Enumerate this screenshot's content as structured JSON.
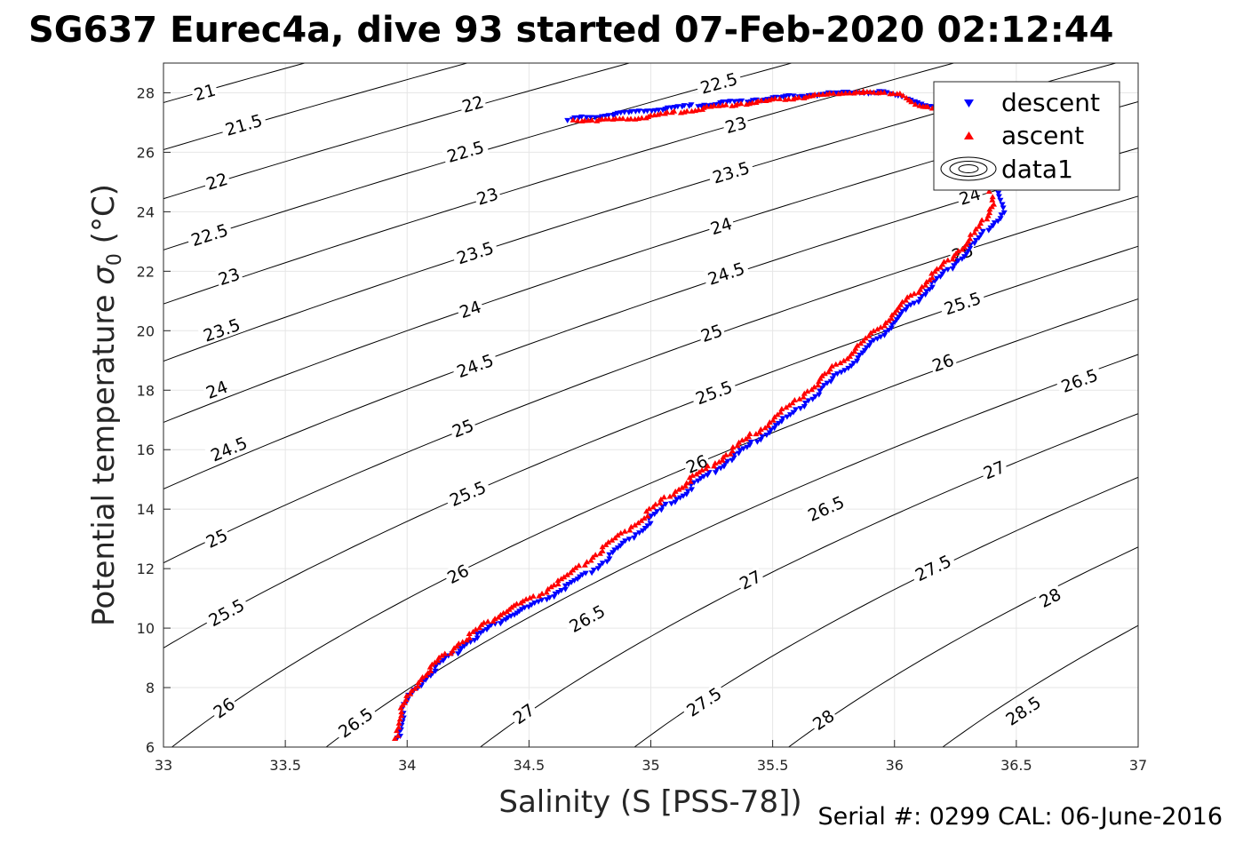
{
  "chart_data": {
    "type": "scatter",
    "title": "SG637 Eurec4a, dive 93 started 07-Feb-2020 02:12:44",
    "xlabel": "Salinity (S [PSS-78])",
    "ylabel_main": "Potential temperature ",
    "ylabel_symbol": "σ",
    "ylabel_sub": "0",
    "ylabel_unit": " (°C)",
    "footer": "Serial #: 0299 CAL: 06-June-2016",
    "xlim": [
      33,
      37
    ],
    "ylim": [
      6,
      29
    ],
    "xticks": [
      33,
      33.5,
      34,
      34.5,
      35,
      35.5,
      36,
      36.5,
      37
    ],
    "xtick_labels": [
      "33",
      "33.5",
      "34",
      "34.5",
      "35",
      "35.5",
      "36",
      "36.5",
      "37"
    ],
    "yticks": [
      6,
      8,
      10,
      12,
      14,
      16,
      18,
      20,
      22,
      24,
      26,
      28
    ],
    "ytick_labels": [
      "6",
      "8",
      "10",
      "12",
      "14",
      "16",
      "18",
      "20",
      "22",
      "24",
      "26",
      "28"
    ],
    "grid": true,
    "legend_position": "top-right",
    "legend": [
      "descent",
      "ascent",
      "data1"
    ],
    "colors": {
      "descent": "#0000ff",
      "ascent": "#ff0000",
      "contour": "#000000",
      "grid": "#e6e6e6"
    },
    "density_contours": {
      "levels": [
        21,
        21.5,
        22,
        22.5,
        23,
        23.5,
        24,
        24.5,
        25,
        25.5,
        26,
        26.5,
        27,
        27.5,
        28,
        28.5
      ],
      "labels": [
        {
          "text": "21",
          "s": 33.17,
          "t": 28.0
        },
        {
          "text": "21.5",
          "s": 33.33,
          "t": 26.9
        },
        {
          "text": "22",
          "s": 33.22,
          "t": 25.0
        },
        {
          "text": "22.5",
          "s": 33.19,
          "t": 23.2
        },
        {
          "text": "23",
          "s": 33.27,
          "t": 21.8
        },
        {
          "text": "23.5",
          "s": 33.24,
          "t": 20.0
        },
        {
          "text": "24",
          "s": 33.22,
          "t": 18.0
        },
        {
          "text": "24.5",
          "s": 33.27,
          "t": 16.0
        },
        {
          "text": "25",
          "s": 33.22,
          "t": 13.0
        },
        {
          "text": "25.5",
          "s": 33.26,
          "t": 10.5
        },
        {
          "text": "26",
          "s": 33.25,
          "t": 7.3
        },
        {
          "text": "26.5",
          "s": 33.79,
          "t": 6.8
        },
        {
          "text": "22",
          "s": 34.27,
          "t": 27.6
        },
        {
          "text": "22.5",
          "s": 34.24,
          "t": 26.0
        },
        {
          "text": "23",
          "s": 34.33,
          "t": 24.5
        },
        {
          "text": "23.5",
          "s": 34.28,
          "t": 22.6
        },
        {
          "text": "24",
          "s": 34.26,
          "t": 20.7
        },
        {
          "text": "24.5",
          "s": 34.28,
          "t": 18.8
        },
        {
          "text": "25",
          "s": 34.23,
          "t": 16.7
        },
        {
          "text": "25.5",
          "s": 34.25,
          "t": 14.5
        },
        {
          "text": "26",
          "s": 34.21,
          "t": 11.8
        },
        {
          "text": "26.5",
          "s": 34.74,
          "t": 10.3
        },
        {
          "text": "27",
          "s": 34.48,
          "t": 7.1
        },
        {
          "text": "22.5",
          "s": 35.28,
          "t": 28.3
        },
        {
          "text": "23",
          "s": 35.35,
          "t": 26.9
        },
        {
          "text": "23.5",
          "s": 35.33,
          "t": 25.3
        },
        {
          "text": "24",
          "s": 35.29,
          "t": 23.5
        },
        {
          "text": "24.5",
          "s": 35.31,
          "t": 21.9
        },
        {
          "text": "25",
          "s": 35.25,
          "t": 19.9
        },
        {
          "text": "25.5",
          "s": 35.26,
          "t": 17.9
        },
        {
          "text": "26",
          "s": 35.19,
          "t": 15.5
        },
        {
          "text": "26.5",
          "s": 35.72,
          "t": 14.0
        },
        {
          "text": "27",
          "s": 35.41,
          "t": 11.6
        },
        {
          "text": "27.5",
          "s": 35.22,
          "t": 7.5
        },
        {
          "text": "28",
          "s": 35.71,
          "t": 6.9
        },
        {
          "text": "24",
          "s": 36.31,
          "t": 24.5
        },
        {
          "text": "25",
          "s": 36.28,
          "t": 22.6
        },
        {
          "text": "25.5",
          "s": 36.28,
          "t": 20.9
        },
        {
          "text": "26",
          "s": 36.2,
          "t": 18.9
        },
        {
          "text": "26.5",
          "s": 36.76,
          "t": 18.3
        },
        {
          "text": "27",
          "s": 36.41,
          "t": 15.3
        },
        {
          "text": "27.5",
          "s": 36.16,
          "t": 12.0
        },
        {
          "text": "28",
          "s": 36.64,
          "t": 11.0
        },
        {
          "text": "28.5",
          "s": 36.53,
          "t": 7.2
        }
      ]
    },
    "series": [
      {
        "name": "descent",
        "marker": "triangle-down",
        "points": [
          [
            33.96,
            6.3
          ],
          [
            33.97,
            6.6
          ],
          [
            33.98,
            7.0
          ],
          [
            33.99,
            7.4
          ],
          [
            34.02,
            7.8
          ],
          [
            34.06,
            8.2
          ],
          [
            34.1,
            8.5
          ],
          [
            34.14,
            8.8
          ],
          [
            34.19,
            9.1
          ],
          [
            34.23,
            9.4
          ],
          [
            34.28,
            9.7
          ],
          [
            34.34,
            10.0
          ],
          [
            34.4,
            10.3
          ],
          [
            34.45,
            10.5
          ],
          [
            34.5,
            10.7
          ],
          [
            34.56,
            10.9
          ],
          [
            34.62,
            11.2
          ],
          [
            34.68,
            11.5
          ],
          [
            34.74,
            11.8
          ],
          [
            34.79,
            12.1
          ],
          [
            34.85,
            12.5
          ],
          [
            34.9,
            12.9
          ],
          [
            34.96,
            13.3
          ],
          [
            35.02,
            13.8
          ],
          [
            35.08,
            14.2
          ],
          [
            35.15,
            14.6
          ],
          [
            35.21,
            15.0
          ],
          [
            35.28,
            15.4
          ],
          [
            35.35,
            15.8
          ],
          [
            35.42,
            16.2
          ],
          [
            35.48,
            16.6
          ],
          [
            35.55,
            17.0
          ],
          [
            35.61,
            17.4
          ],
          [
            35.67,
            17.8
          ],
          [
            35.73,
            18.2
          ],
          [
            35.78,
            18.6
          ],
          [
            35.84,
            19.0
          ],
          [
            35.89,
            19.4
          ],
          [
            35.94,
            19.8
          ],
          [
            35.99,
            20.2
          ],
          [
            36.04,
            20.6
          ],
          [
            36.09,
            21.0
          ],
          [
            36.14,
            21.4
          ],
          [
            36.19,
            21.8
          ],
          [
            36.24,
            22.2
          ],
          [
            36.29,
            22.6
          ],
          [
            36.34,
            23.0
          ],
          [
            36.38,
            23.4
          ],
          [
            36.42,
            23.7
          ],
          [
            36.45,
            24.1
          ],
          [
            36.43,
            24.6
          ],
          [
            36.4,
            25.2
          ],
          [
            36.36,
            25.8
          ],
          [
            36.33,
            26.4
          ],
          [
            36.3,
            27.0
          ],
          [
            36.24,
            27.4
          ],
          [
            36.15,
            27.5
          ],
          [
            36.05,
            27.8
          ],
          [
            35.96,
            28.0
          ],
          [
            35.81,
            28.0
          ],
          [
            35.63,
            27.9
          ],
          [
            35.49,
            27.8
          ],
          [
            35.1,
            27.5
          ],
          [
            34.68,
            27.1
          ],
          [
            34.66,
            27.05
          ]
        ]
      },
      {
        "name": "ascent",
        "marker": "triangle-up",
        "points": [
          [
            33.95,
            6.3
          ],
          [
            33.96,
            6.7
          ],
          [
            33.97,
            7.1
          ],
          [
            33.99,
            7.5
          ],
          [
            34.02,
            7.9
          ],
          [
            34.05,
            8.3
          ],
          [
            34.09,
            8.6
          ],
          [
            34.13,
            8.9
          ],
          [
            34.17,
            9.2
          ],
          [
            34.21,
            9.5
          ],
          [
            34.26,
            9.8
          ],
          [
            34.31,
            10.1
          ],
          [
            34.37,
            10.4
          ],
          [
            34.43,
            10.7
          ],
          [
            34.48,
            10.9
          ],
          [
            34.54,
            11.1
          ],
          [
            34.59,
            11.4
          ],
          [
            34.65,
            11.7
          ],
          [
            34.7,
            12.0
          ],
          [
            34.76,
            12.4
          ],
          [
            34.81,
            12.7
          ],
          [
            34.87,
            13.1
          ],
          [
            34.93,
            13.5
          ],
          [
            34.99,
            13.9
          ],
          [
            35.05,
            14.3
          ],
          [
            35.11,
            14.7
          ],
          [
            35.18,
            15.1
          ],
          [
            35.25,
            15.5
          ],
          [
            35.32,
            15.9
          ],
          [
            35.38,
            16.3
          ],
          [
            35.45,
            16.7
          ],
          [
            35.51,
            17.1
          ],
          [
            35.57,
            17.5
          ],
          [
            35.63,
            17.9
          ],
          [
            35.69,
            18.3
          ],
          [
            35.74,
            18.7
          ],
          [
            35.8,
            19.1
          ],
          [
            35.85,
            19.5
          ],
          [
            35.91,
            19.9
          ],
          [
            35.96,
            20.3
          ],
          [
            36.01,
            20.7
          ],
          [
            36.06,
            21.1
          ],
          [
            36.11,
            21.5
          ],
          [
            36.16,
            21.9
          ],
          [
            36.21,
            22.3
          ],
          [
            36.26,
            22.7
          ],
          [
            36.31,
            23.1
          ],
          [
            36.35,
            23.5
          ],
          [
            36.38,
            23.9
          ],
          [
            36.4,
            24.3
          ],
          [
            36.39,
            24.8
          ],
          [
            36.37,
            25.3
          ],
          [
            36.35,
            25.8
          ],
          [
            36.32,
            26.4
          ],
          [
            36.28,
            27.0
          ],
          [
            36.2,
            27.4
          ],
          [
            36.09,
            27.6
          ],
          [
            36.02,
            28.0
          ],
          [
            35.92,
            28.0
          ],
          [
            35.84,
            28.05
          ],
          [
            35.65,
            27.9
          ],
          [
            35.31,
            27.6
          ],
          [
            35.13,
            27.4
          ],
          [
            34.93,
            27.15
          ],
          [
            34.82,
            27.1
          ],
          [
            34.74,
            27.1
          ],
          [
            34.68,
            27.1
          ]
        ]
      }
    ]
  }
}
